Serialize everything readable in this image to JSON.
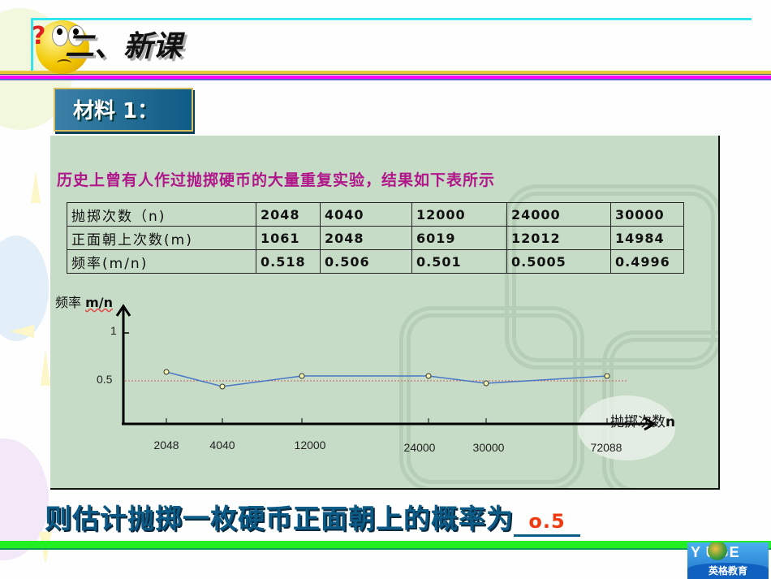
{
  "header": {
    "title": "二、新课",
    "question_mark": "?"
  },
  "material": {
    "label": "材料 1："
  },
  "panel": {
    "intro": "历史上曾有人作过抛掷硬币的大量重复实验，结果如下表所示",
    "table": {
      "rows": [
        {
          "label": "抛掷次数（n)",
          "values": [
            "2048",
            "4040",
            "12000",
            "24000",
            "30000"
          ]
        },
        {
          "label": "正面朝上次数(m)",
          "values": [
            "1061",
            "2048",
            "6019",
            "12012",
            "14984"
          ]
        },
        {
          "label": "频率(m/n)",
          "values": [
            "0.518",
            "0.506",
            "0.501",
            "0.5005",
            "0.4996"
          ]
        }
      ]
    }
  },
  "chart_data": {
    "type": "line",
    "title": "",
    "ylabel": "频率 m/n",
    "xlabel": "抛掷次数n",
    "categories": [
      "2048",
      "4040",
      "12000",
      "24000",
      "30000",
      "72088"
    ],
    "values": [
      0.518,
      0.506,
      0.501,
      0.5005,
      0.4996,
      0.5011
    ],
    "yticks": [
      "1",
      "0.5"
    ],
    "ylim": [
      0,
      1.1
    ],
    "reference_line": {
      "y": 0.5,
      "style": "dotted",
      "color": "#d06060"
    },
    "series_color": "#4a78c8",
    "marker": "circle-open-yellow",
    "grid": false,
    "legend": null
  },
  "chart_labels": {
    "ylabel_cn": "频率",
    "ylabel_en": "m/n",
    "xlabel_cn": "抛掷次数",
    "xlabel_en": "n",
    "ytick_1": "1",
    "ytick_05": "0.5",
    "xticks": [
      "2048",
      "4040",
      "12000",
      "24000",
      "30000",
      "72088"
    ]
  },
  "answer": {
    "question": "则估计抛掷一枚硬币正面朝上的概率为",
    "value": "o.5"
  },
  "logo": {
    "brand": "Y  UGE",
    "subtitle": "英格教育"
  },
  "colors": {
    "panel_bg": "#c6dcc6",
    "intro_text": "#b0168a",
    "answer_text": "#0c5a86",
    "answer_value": "#f03a10",
    "title_border": "#33e6ee",
    "bottom_line": "#22ee22"
  }
}
